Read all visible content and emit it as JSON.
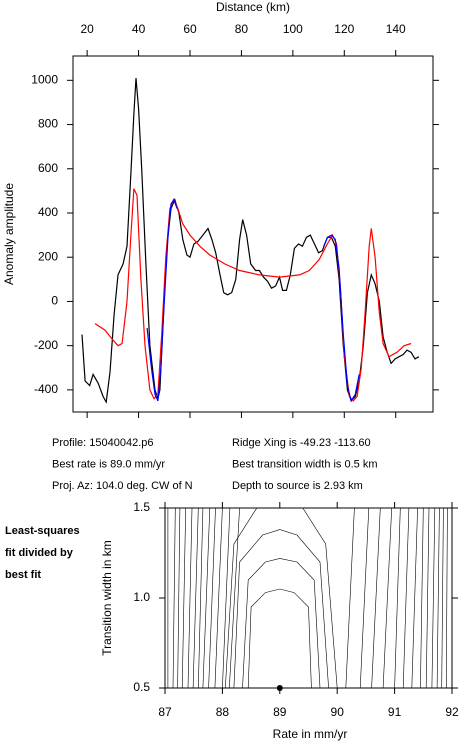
{
  "chart_data": [
    {
      "type": "line",
      "xlabel": "Distance (km)",
      "ylabel": "Anomaly amplitude",
      "xlim": [
        14.5,
        154.5
      ],
      "ylim": [
        -500,
        1110
      ],
      "xticks": [
        20,
        40,
        60,
        80,
        100,
        120,
        140
      ],
      "yticks": [
        -400,
        -200,
        0,
        200,
        400,
        600,
        800,
        1000
      ],
      "series": [
        {
          "color": "#000000",
          "x": [
            18,
            19.2,
            21,
            22.3,
            24.3,
            26.2,
            27.4,
            28.9,
            30.5,
            32,
            34,
            35.5,
            37,
            38.2,
            39,
            40,
            41.2,
            42.8,
            44.4,
            46.4,
            47.5,
            48.3,
            49.5,
            51,
            52.6,
            54.1,
            55.7,
            57.2,
            58.8,
            60,
            61.5,
            63,
            65,
            67,
            68.5,
            70,
            71.5,
            73.1,
            74.6,
            76.2,
            77.8,
            79.3,
            80.5,
            82,
            83.6,
            85.5,
            87,
            88.6,
            90.2,
            91.7,
            93.3,
            94.8,
            96,
            97.5,
            99,
            100.6,
            102.2,
            103.7,
            105.3,
            106.8,
            108.4,
            110,
            111.5,
            113.4,
            115,
            116.5,
            118,
            119.6,
            121.2,
            122.7,
            124.3,
            125.8,
            127.4,
            129,
            130.5,
            132,
            133.6,
            135.1,
            136.7,
            138.2,
            139.8,
            141.3,
            142.9,
            144.4,
            146,
            147.5,
            149
          ],
          "values": [
            -150,
            -360,
            -380,
            -330,
            -370,
            -430,
            -455,
            -320,
            -60,
            120,
            170,
            250,
            580,
            850,
            1010,
            870,
            600,
            180,
            -200,
            -400,
            -440,
            -400,
            -100,
            250,
            420,
            460,
            400,
            280,
            210,
            200,
            260,
            270,
            300,
            330,
            280,
            220,
            130,
            40,
            30,
            40,
            100,
            280,
            370,
            300,
            170,
            140,
            140,
            110,
            90,
            60,
            70,
            110,
            50,
            50,
            120,
            240,
            260,
            250,
            290,
            300,
            260,
            220,
            230,
            290,
            290,
            250,
            100,
            -200,
            -400,
            -450,
            -430,
            -360,
            -200,
            40,
            120,
            80,
            0,
            -160,
            -230,
            -280,
            -260,
            -250,
            -240,
            -220,
            -230,
            -260,
            -250
          ]
        },
        {
          "color": "#ff0000",
          "x": [
            23.1,
            27,
            29.7,
            32,
            33.6,
            35.5,
            37,
            38.2,
            39.4,
            40.9,
            42.5,
            44.4,
            46,
            47.5,
            49,
            50.6,
            52.2,
            53.7,
            55.3,
            57.2,
            60,
            63.8,
            67.7,
            73.5,
            79.3,
            87,
            94.8,
            102.6,
            106.4,
            110.3,
            113.4,
            115.4,
            117,
            118.5,
            120,
            122,
            123.5,
            125,
            126.6,
            128.1,
            129.7,
            130.5,
            132,
            133.6,
            135.1,
            137.4,
            140.5,
            143.3,
            146
          ],
          "values": [
            -100,
            -130,
            -170,
            -200,
            -190,
            0,
            300,
            510,
            480,
            100,
            -200,
            -400,
            -440,
            -420,
            -150,
            200,
            420,
            460,
            420,
            350,
            300,
            250,
            210,
            170,
            140,
            120,
            110,
            120,
            140,
            190,
            260,
            300,
            260,
            60,
            -250,
            -430,
            -450,
            -430,
            -300,
            -50,
            250,
            330,
            200,
            -50,
            -190,
            -250,
            -230,
            -200,
            -190
          ]
        },
        {
          "color": "#0000ff",
          "x": [
            43.3,
            45,
            46.4,
            47.5,
            48.7,
            50,
            51.5,
            52.6,
            53.7,
            55,
            null,
            112,
            113.5,
            115,
            116.5,
            118,
            119.6,
            121.2,
            122.7,
            124.3,
            125.8
          ],
          "values": [
            -120,
            -300,
            -420,
            -450,
            -300,
            0,
            300,
            440,
            460,
            420,
            null,
            250,
            290,
            300,
            280,
            150,
            -150,
            -380,
            -450,
            -420,
            -330
          ]
        }
      ]
    },
    {
      "type": "contour",
      "title": [
        "Least-squares",
        "fit divided by",
        "best fit"
      ],
      "xlabel": "Rate in mm/yr",
      "ylabel": "Transition width in km",
      "xlim": [
        87,
        92
      ],
      "ylim": [
        0.5,
        1.5
      ],
      "xticks": [
        87,
        88,
        89,
        90,
        91,
        92
      ],
      "yticks": [
        0.5,
        {
          "value": 1,
          "label": "1.0"
        },
        1.5
      ],
      "lines": [
        {
          "x": [
            87.05,
            87.05
          ],
          "y": [
            1.5,
            0.5
          ]
        },
        {
          "x": [
            87.18,
            87.14
          ],
          "y": [
            1.5,
            0.5
          ]
        },
        {
          "x": [
            87.26,
            87.22
          ],
          "y": [
            1.5,
            0.5
          ]
        },
        {
          "x": [
            87.36,
            87.3
          ],
          "y": [
            1.5,
            0.5
          ]
        },
        {
          "x": [
            87.47,
            87.4
          ],
          "y": [
            1.5,
            0.5
          ]
        },
        {
          "x": [
            87.58,
            87.49
          ],
          "y": [
            1.5,
            0.5
          ]
        },
        {
          "x": [
            87.66,
            87.58
          ],
          "y": [
            1.5,
            0.5
          ]
        },
        {
          "x": [
            87.78,
            87.66
          ],
          "y": [
            1.5,
            0.5
          ]
        },
        {
          "x": [
            87.88,
            87.76
          ],
          "y": [
            1.5,
            0.5
          ]
        },
        {
          "x": [
            88.0,
            87.87
          ],
          "y": [
            1.5,
            0.5
          ]
        },
        {
          "x": [
            88.13,
            88.0
          ],
          "y": [
            1.5,
            0.5
          ]
        },
        {
          "x": [
            88.3,
            88.12
          ],
          "y": [
            1.5,
            0.5
          ]
        },
        {
          "x": [
            88.45,
            88.5,
            88.75,
            89.0,
            89.25,
            89.5,
            89.55
          ],
          "y": [
            0.5,
            0.95,
            1.03,
            1.05,
            1.03,
            0.95,
            0.5
          ]
        },
        {
          "x": [
            88.35,
            88.45,
            88.75,
            89.0,
            89.3,
            89.6,
            89.7
          ],
          "y": [
            0.5,
            1.1,
            1.2,
            1.22,
            1.2,
            1.1,
            0.5
          ]
        },
        {
          "x": [
            88.2,
            88.3,
            88.7,
            89.0,
            89.3,
            89.7,
            89.85
          ],
          "y": [
            0.5,
            1.2,
            1.35,
            1.38,
            1.35,
            1.2,
            0.5
          ]
        },
        {
          "x": [
            88.05,
            88.2,
            88.6
          ],
          "y": [
            0.5,
            1.3,
            1.5
          ]
        },
        {
          "x": [
            89.4,
            89.8,
            90.0
          ],
          "y": [
            1.5,
            1.3,
            0.5
          ]
        },
        {
          "x": [
            90.3,
            90.15
          ],
          "y": [
            1.5,
            0.5
          ]
        },
        {
          "x": [
            90.55,
            90.4
          ],
          "y": [
            1.5,
            0.5
          ]
        },
        {
          "x": [
            90.75,
            90.6
          ],
          "y": [
            1.5,
            0.5
          ]
        },
        {
          "x": [
            90.95,
            90.8
          ],
          "y": [
            1.5,
            0.5
          ]
        },
        {
          "x": [
            91.1,
            91.0
          ],
          "y": [
            1.5,
            0.5
          ]
        },
        {
          "x": [
            91.25,
            91.15
          ],
          "y": [
            1.5,
            0.5
          ]
        },
        {
          "x": [
            91.4,
            91.3
          ],
          "y": [
            1.5,
            0.5
          ]
        },
        {
          "x": [
            91.5,
            91.45
          ],
          "y": [
            1.5,
            0.5
          ]
        },
        {
          "x": [
            91.6,
            91.55
          ],
          "y": [
            1.5,
            0.5
          ]
        },
        {
          "x": [
            91.7,
            91.65
          ],
          "y": [
            1.5,
            0.5
          ]
        },
        {
          "x": [
            91.78,
            91.74
          ],
          "y": [
            1.5,
            0.5
          ]
        },
        {
          "x": [
            91.85,
            91.82
          ],
          "y": [
            1.5,
            0.5
          ]
        },
        {
          "x": [
            91.92,
            91.9
          ],
          "y": [
            1.5,
            0.5
          ]
        }
      ],
      "best": {
        "x": 89.0,
        "y": 0.5
      }
    }
  ],
  "info": {
    "left": [
      "Profile: 15040042.p6",
      "Best rate is 89.0 mm/yr",
      "Proj. Az: 104.0 deg. CW of N"
    ],
    "right": [
      "Ridge Xing is -49.23 -113.60",
      "Best transition width is 0.5 km",
      "Depth to source is   2.93 km"
    ]
  }
}
